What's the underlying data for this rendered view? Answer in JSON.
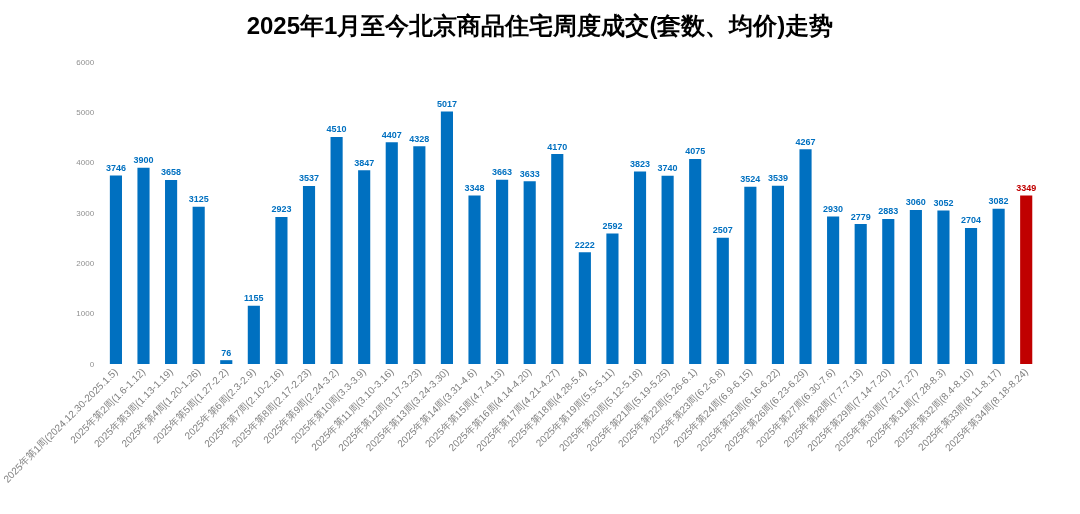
{
  "chart_data": {
    "type": "bar",
    "title": "2025年1月至今北京商品住宅周度成交(套数、均价)走势",
    "categories": [
      "2025年第1周(2024.12.30-2025.1.5)",
      "2025年第2周(1.6-1.12)",
      "2025年第3周(1.13-1.19)",
      "2025年第4周(1.20-1.26)",
      "2025年第5周(1.27-2.2)",
      "2025年第6周(2.3-2.9)",
      "2025年第7周(2.10-2.16)",
      "2025年第8周(2.17-2.23)",
      "2025年第9周(2.24-3.2)",
      "2025年第10周(3.3-3.9)",
      "2025年第11周(3.10-3.16)",
      "2025年第12周(3.17-3.23)",
      "2025年第13周(3.24-3.30)",
      "2025年第14周(3.31-4.6)",
      "2025年第15周(4.7-4.13)",
      "2025年第16周(4.14-4.20)",
      "2025年第17周(4.21-4.27)",
      "2025年第18周(4.28-5.4)",
      "2025年第19周(5.5-5.11)",
      "2025年第20周(5.12-5.18)",
      "2025年第21周(5.19-5.25)",
      "2025年第22周(5.26-6.1)",
      "2025年第23周(6.2-6.8)",
      "2025年第24周(6.9-6.15)",
      "2025年第25周(6.16-6.22)",
      "2025年第26周(6.23-6.29)",
      "2025年第27周(6.30-7.6)",
      "2025年第28周(7.7-7.13)",
      "2025年第29周(7.14-7.20)",
      "2025年第30周(7.21-7.27)",
      "2025年第31周(7.28-8.3)",
      "2025年第32周(8.4-8.10)",
      "2025年第33周(8.11-8.17)",
      "2025年第34周(8.18-8.24)"
    ],
    "values": [
      3746,
      3900,
      3658,
      3125,
      76,
      1155,
      2923,
      3537,
      4510,
      3847,
      4407,
      4328,
      5017,
      3348,
      3663,
      3633,
      4170,
      2222,
      2592,
      3823,
      3740,
      4075,
      2507,
      3524,
      3539,
      4267,
      2930,
      2779,
      2883,
      3060,
      3052,
      2704,
      3082,
      3349
    ],
    "colors": [
      "#0070c0",
      "#0070c0",
      "#0070c0",
      "#0070c0",
      "#0070c0",
      "#0070c0",
      "#0070c0",
      "#0070c0",
      "#0070c0",
      "#0070c0",
      "#0070c0",
      "#0070c0",
      "#0070c0",
      "#0070c0",
      "#0070c0",
      "#0070c0",
      "#0070c0",
      "#0070c0",
      "#0070c0",
      "#0070c0",
      "#0070c0",
      "#0070c0",
      "#0070c0",
      "#0070c0",
      "#0070c0",
      "#0070c0",
      "#0070c0",
      "#0070c0",
      "#0070c0",
      "#0070c0",
      "#0070c0",
      "#0070c0",
      "#0070c0",
      "#c00000"
    ],
    "ylim": [
      0,
      6000
    ],
    "yticks": [
      0,
      1000,
      2000,
      3000,
      4000,
      5000,
      6000
    ],
    "data_labels": true
  }
}
